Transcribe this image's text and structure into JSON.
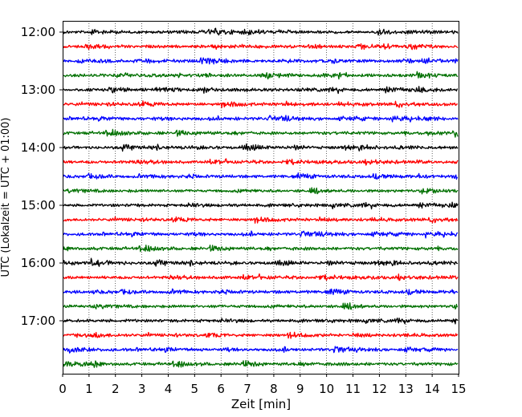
{
  "chart_data": {
    "type": "line",
    "title": "",
    "xlabel": "Zeit  [min]",
    "ylabel": "UTC (Lokalzeit = UTC + 01:00)",
    "xlim": [
      0,
      15
    ],
    "x_ticks": [
      "0",
      "1",
      "2",
      "3",
      "4",
      "5",
      "6",
      "7",
      "8",
      "9",
      "10",
      "11",
      "12",
      "13",
      "14",
      "15"
    ],
    "y_ticks": [
      "12:00",
      "13:00",
      "14:00",
      "15:00",
      "16:00",
      "17:00"
    ],
    "grid": "vertical dotted",
    "trace_interval_minutes": 15,
    "first_trace": "12:00",
    "color_cycle": [
      "#000000",
      "#ff0000",
      "#0000ff",
      "#007000"
    ],
    "traces": [
      {
        "start": "12:00",
        "color": "#000000"
      },
      {
        "start": "12:15",
        "color": "#ff0000"
      },
      {
        "start": "12:30",
        "color": "#0000ff"
      },
      {
        "start": "12:45",
        "color": "#007000"
      },
      {
        "start": "13:00",
        "color": "#000000"
      },
      {
        "start": "13:15",
        "color": "#ff0000"
      },
      {
        "start": "13:30",
        "color": "#0000ff"
      },
      {
        "start": "13:45",
        "color": "#007000"
      },
      {
        "start": "14:00",
        "color": "#000000"
      },
      {
        "start": "14:15",
        "color": "#ff0000"
      },
      {
        "start": "14:30",
        "color": "#0000ff"
      },
      {
        "start": "14:45",
        "color": "#007000"
      },
      {
        "start": "15:00",
        "color": "#000000"
      },
      {
        "start": "15:15",
        "color": "#ff0000"
      },
      {
        "start": "15:30",
        "color": "#0000ff"
      },
      {
        "start": "15:45",
        "color": "#007000"
      },
      {
        "start": "16:00",
        "color": "#000000"
      },
      {
        "start": "16:15",
        "color": "#ff0000"
      },
      {
        "start": "16:30",
        "color": "#0000ff"
      },
      {
        "start": "16:45",
        "color": "#007000"
      },
      {
        "start": "17:00",
        "color": "#000000"
      },
      {
        "start": "17:15",
        "color": "#ff0000"
      },
      {
        "start": "17:30",
        "color": "#0000ff"
      },
      {
        "start": "17:45",
        "color": "#007000"
      }
    ]
  }
}
